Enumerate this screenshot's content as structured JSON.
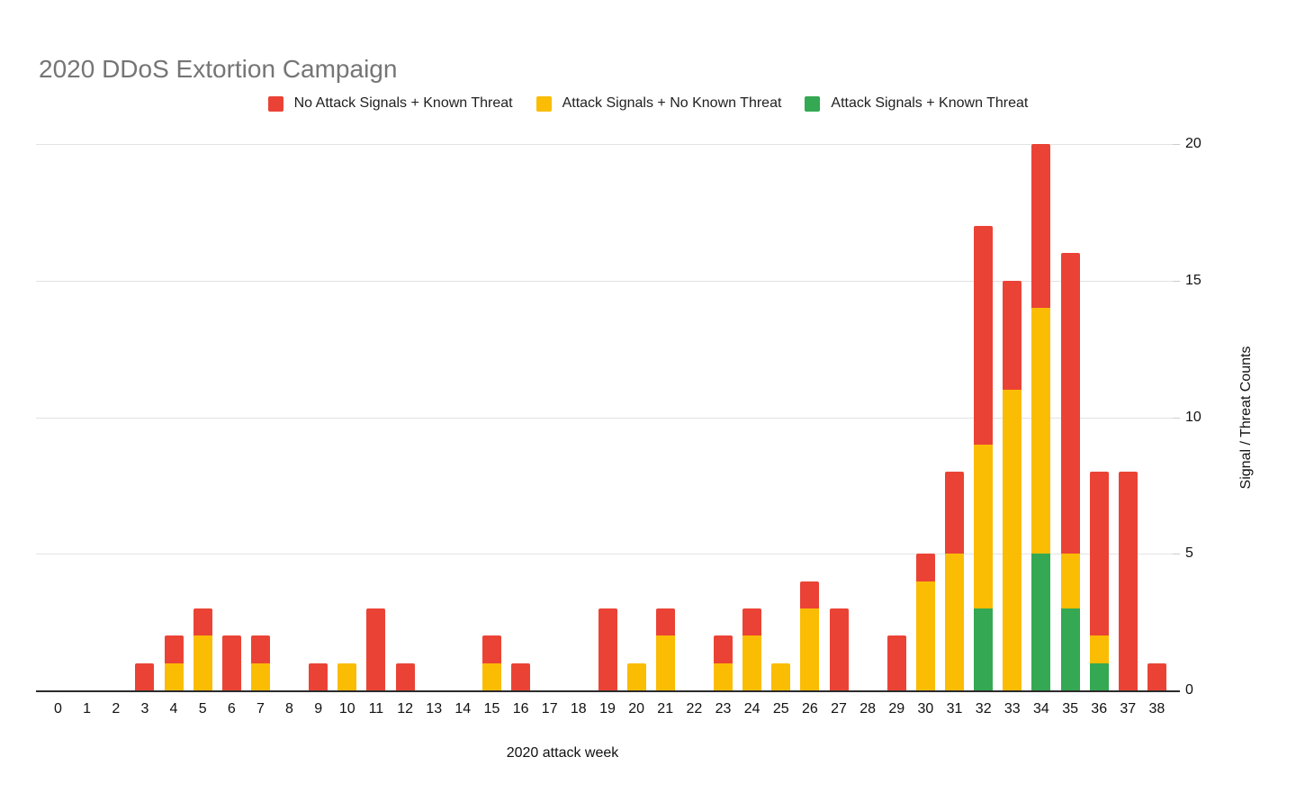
{
  "title": "2020 DDoS Extortion Campaign",
  "legend": [
    {
      "label": "No Attack Signals + Known Threat",
      "color": "#EA4335"
    },
    {
      "label": "Attack Signals + No Known Threat",
      "color": "#FBBC04"
    },
    {
      "label": "Attack Signals + Known Threat",
      "color": "#34A853"
    }
  ],
  "colors": {
    "red": "#EA4335",
    "yellow": "#FBBC04",
    "green": "#34A853",
    "title_text": "#757575",
    "gridline": "#e3e3e3",
    "axis_line": "#2b2b2b"
  },
  "chart_data": {
    "type": "bar",
    "stacked": true,
    "title": "2020 DDoS Extortion Campaign",
    "xlabel": "2020 attack week",
    "ylabel": "Signal / Threat Counts",
    "ylim": [
      0,
      20
    ],
    "yticks": [
      0,
      5,
      10,
      15,
      20
    ],
    "grid": true,
    "legend_position": "top",
    "categories": [
      0,
      1,
      2,
      3,
      4,
      5,
      6,
      7,
      8,
      9,
      10,
      11,
      12,
      13,
      14,
      15,
      16,
      17,
      18,
      19,
      20,
      21,
      22,
      23,
      24,
      25,
      26,
      27,
      28,
      29,
      30,
      31,
      32,
      33,
      34,
      35,
      36,
      37,
      38
    ],
    "series": [
      {
        "name": "Attack Signals + Known Threat",
        "color": "#34A853",
        "values": [
          0,
          0,
          0,
          0,
          0,
          0,
          0,
          0,
          0,
          0,
          0,
          0,
          0,
          0,
          0,
          0,
          0,
          0,
          0,
          0,
          0,
          0,
          0,
          0,
          0,
          0,
          0,
          0,
          0,
          0,
          0,
          0,
          3,
          0,
          5,
          3,
          1,
          0,
          0
        ]
      },
      {
        "name": "Attack Signals + No Known Threat",
        "color": "#FBBC04",
        "values": [
          0,
          0,
          0,
          0,
          1,
          2,
          0,
          1,
          0,
          0,
          1,
          0,
          0,
          0,
          0,
          1,
          0,
          0,
          0,
          0,
          1,
          2,
          0,
          1,
          2,
          1,
          3,
          0,
          0,
          0,
          4,
          5,
          6,
          11,
          9,
          2,
          1,
          0,
          0
        ]
      },
      {
        "name": "No Attack Signals + Known Threat",
        "color": "#EA4335",
        "values": [
          0,
          0,
          0,
          1,
          1,
          1,
          2,
          1,
          0,
          1,
          0,
          3,
          1,
          0,
          0,
          1,
          1,
          0,
          0,
          3,
          0,
          1,
          0,
          1,
          1,
          0,
          1,
          3,
          0,
          2,
          1,
          3,
          8,
          4,
          6,
          11,
          6,
          8,
          1
        ]
      }
    ]
  }
}
